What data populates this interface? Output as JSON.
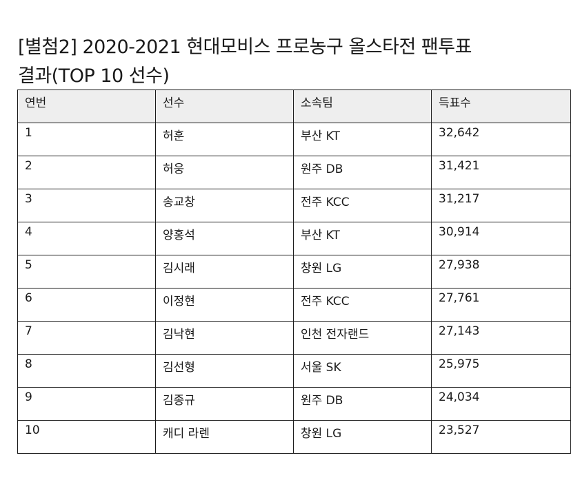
{
  "document": {
    "title_line1": "[별첨2] 2020-2021 현대모비스 프로농구 올스타전 팬투표",
    "title_line2": "결과(TOP 10 선수)"
  },
  "table": {
    "headers": [
      "연번",
      "선수",
      "소속팀",
      "득표수"
    ],
    "rows": [
      [
        "1",
        "허훈",
        "부산 KT",
        "32,642"
      ],
      [
        "2",
        "허웅",
        "원주 DB",
        "31,421"
      ],
      [
        "3",
        "송교창",
        "전주 KCC",
        "31,217"
      ],
      [
        "4",
        "양홍석",
        "부산 KT",
        "30,914"
      ],
      [
        "5",
        "김시래",
        "창원 LG",
        "27,938"
      ],
      [
        "6",
        "이정현",
        "전주 KCC",
        "27,761"
      ],
      [
        "7",
        "김낙현",
        "인천 전자랜드",
        "27,143"
      ],
      [
        "8",
        "김선형",
        "서울 SK",
        "25,975"
      ],
      [
        "9",
        "김종규",
        "원주 DB",
        "24,034"
      ],
      [
        "10",
        "캐디 라렌",
        "창원 LG",
        "23,527"
      ]
    ]
  }
}
